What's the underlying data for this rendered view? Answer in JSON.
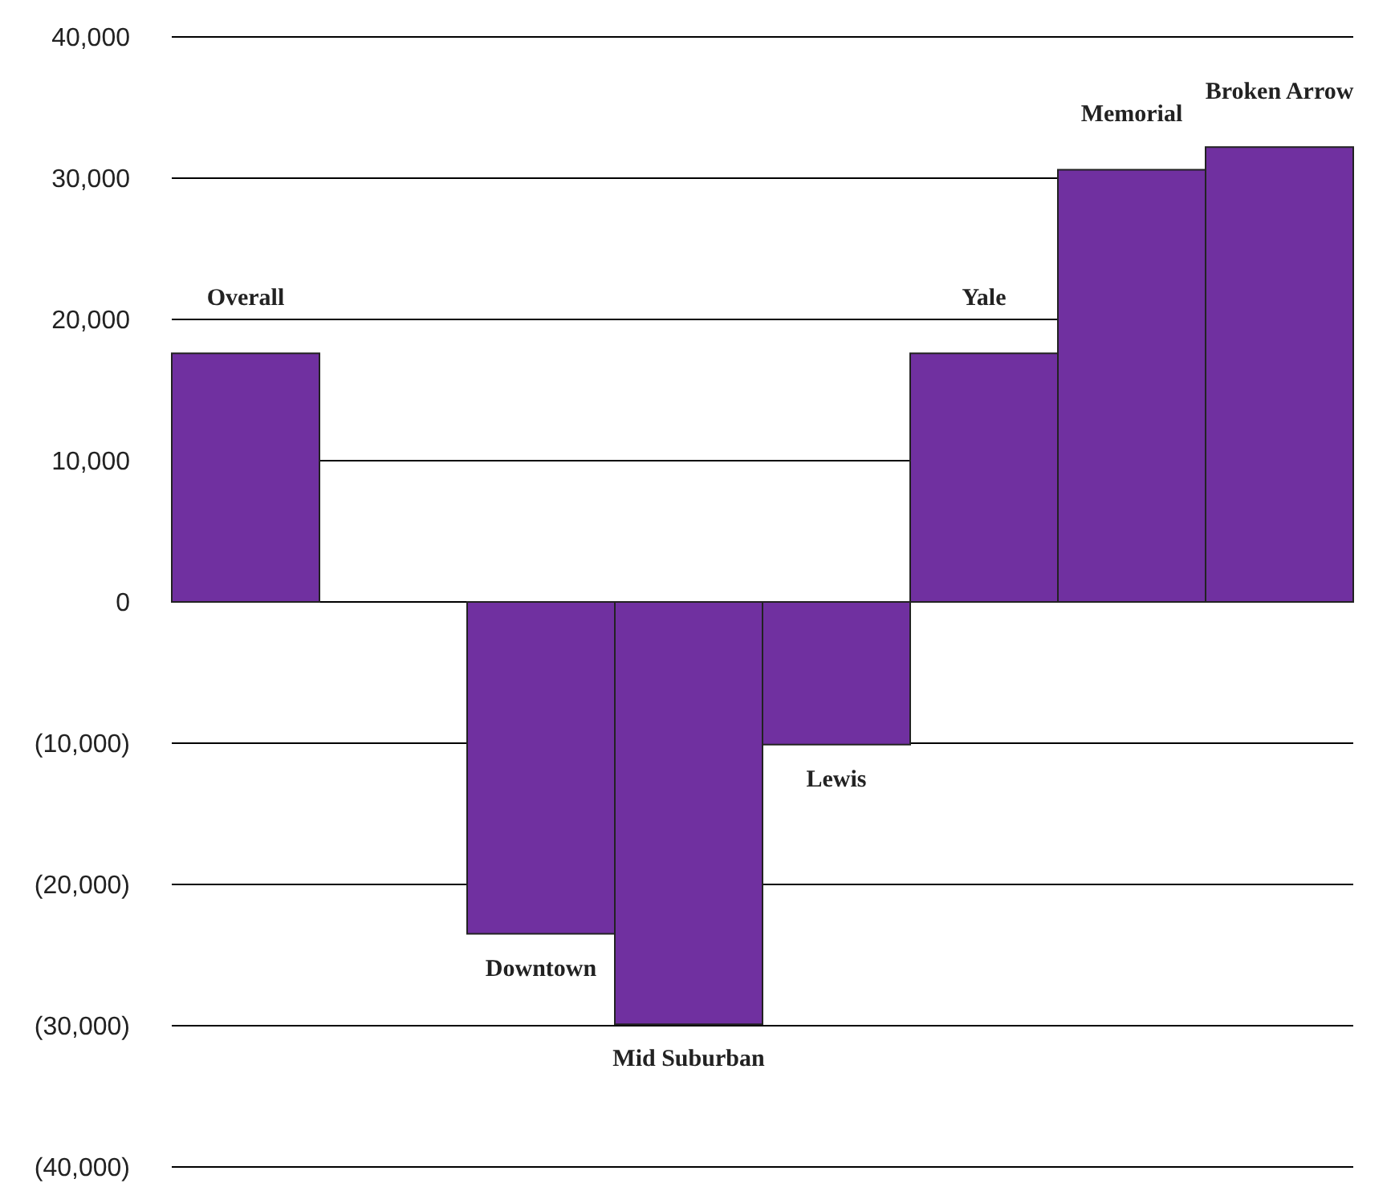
{
  "chart_data": {
    "type": "bar",
    "categories": [
      "Overall",
      null,
      "Downtown",
      "Mid Suburban",
      "Lewis",
      "Yale",
      "Memorial",
      "Broken Arrow"
    ],
    "values": [
      17600,
      null,
      -23500,
      -29900,
      -10100,
      17600,
      30600,
      32200
    ],
    "color": "#7030a0",
    "ylim": [
      -40000,
      40000
    ],
    "yticks": [
      {
        "value": -40000,
        "label": "(40,000)"
      },
      {
        "value": -30000,
        "label": "(30,000)"
      },
      {
        "value": -20000,
        "label": "(20,000)"
      },
      {
        "value": -10000,
        "label": "(10,000)"
      },
      {
        "value": 0,
        "label": "0"
      },
      {
        "value": 10000,
        "label": "10,000"
      },
      {
        "value": 20000,
        "label": "20,000"
      },
      {
        "value": 30000,
        "label": "30,000"
      },
      {
        "value": 40000,
        "label": "40,000"
      }
    ],
    "grid": "y",
    "tick_labels": "y"
  }
}
